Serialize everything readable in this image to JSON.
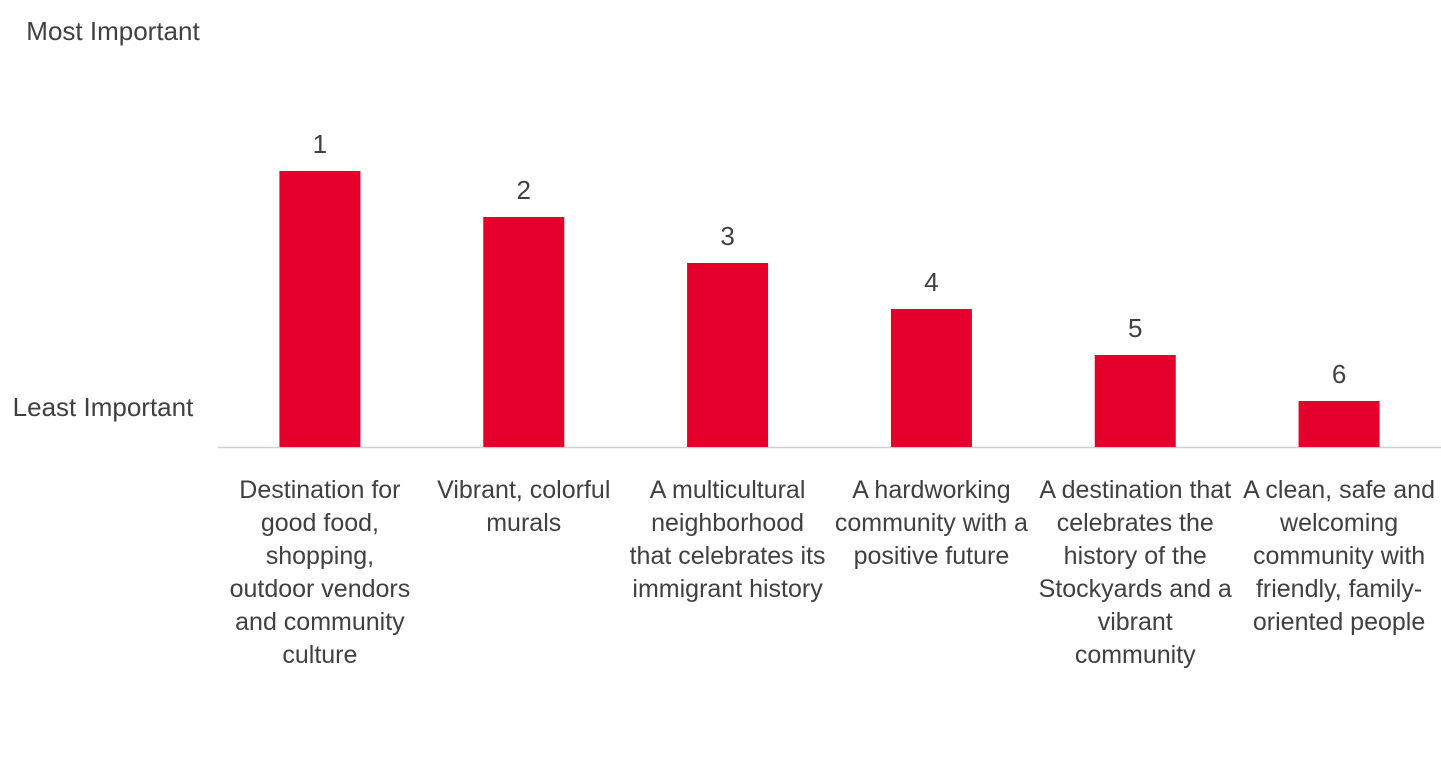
{
  "chart_data": {
    "type": "bar",
    "y_top_label": "Most Important",
    "y_bottom_label": "Least Important",
    "categories": [
      "Destination for good food, shopping, outdoor vendors and community culture",
      "Vibrant, colorful murals",
      "A multicultural neighborhood that celebrates its immigrant history",
      "A hardworking community with a positive future",
      "A destination that celebrates the history of the Stockyards and a vibrant community",
      "A clean, safe and welcoming community with friendly, family-oriented people"
    ],
    "values": [
      1,
      2,
      3,
      4,
      5,
      6
    ],
    "color": "#e4002b",
    "ylim": [
      7,
      0
    ]
  }
}
